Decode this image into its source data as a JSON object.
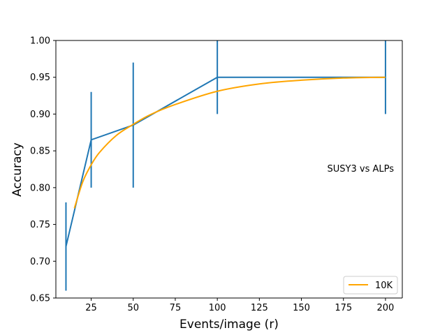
{
  "chart_data": {
    "type": "line",
    "xlabel": "Events/image (r)",
    "ylabel": "Accuracy",
    "xlim": [
      4,
      210
    ],
    "ylim": [
      0.65,
      1.0
    ],
    "xticks": [
      25,
      50,
      75,
      100,
      125,
      150,
      175,
      200
    ],
    "yticks": [
      0.65,
      0.7,
      0.75,
      0.8,
      0.85,
      0.9,
      0.95,
      1.0
    ],
    "xtick_labels": [
      "25",
      "50",
      "75",
      "100",
      "125",
      "150",
      "175",
      "200"
    ],
    "ytick_labels": [
      "0.65",
      "0.70",
      "0.75",
      "0.80",
      "0.85",
      "0.90",
      "0.95",
      "1.00"
    ],
    "grid": false,
    "annotation": "SUSY3 vs ALPs",
    "legend_position": "lower-right",
    "series": [
      {
        "kind": "errorbar",
        "color": "#1f77b4",
        "x": [
          10,
          25,
          50,
          100,
          200
        ],
        "y": [
          0.72,
          0.865,
          0.885,
          0.95,
          0.95
        ],
        "y_lower": [
          0.66,
          0.8,
          0.8,
          0.9,
          0.9
        ],
        "y_upper": [
          0.78,
          0.93,
          0.97,
          1.0,
          1.0
        ]
      },
      {
        "kind": "fit",
        "name": "10K",
        "color": "#ffa500",
        "x": [
          15,
          20,
          25,
          30,
          40,
          50,
          60,
          75,
          100,
          125,
          150,
          175,
          200
        ],
        "y": [
          0.772,
          0.808,
          0.831,
          0.848,
          0.871,
          0.886,
          0.899,
          0.913,
          0.931,
          0.941,
          0.946,
          0.949,
          0.95
        ]
      }
    ]
  }
}
